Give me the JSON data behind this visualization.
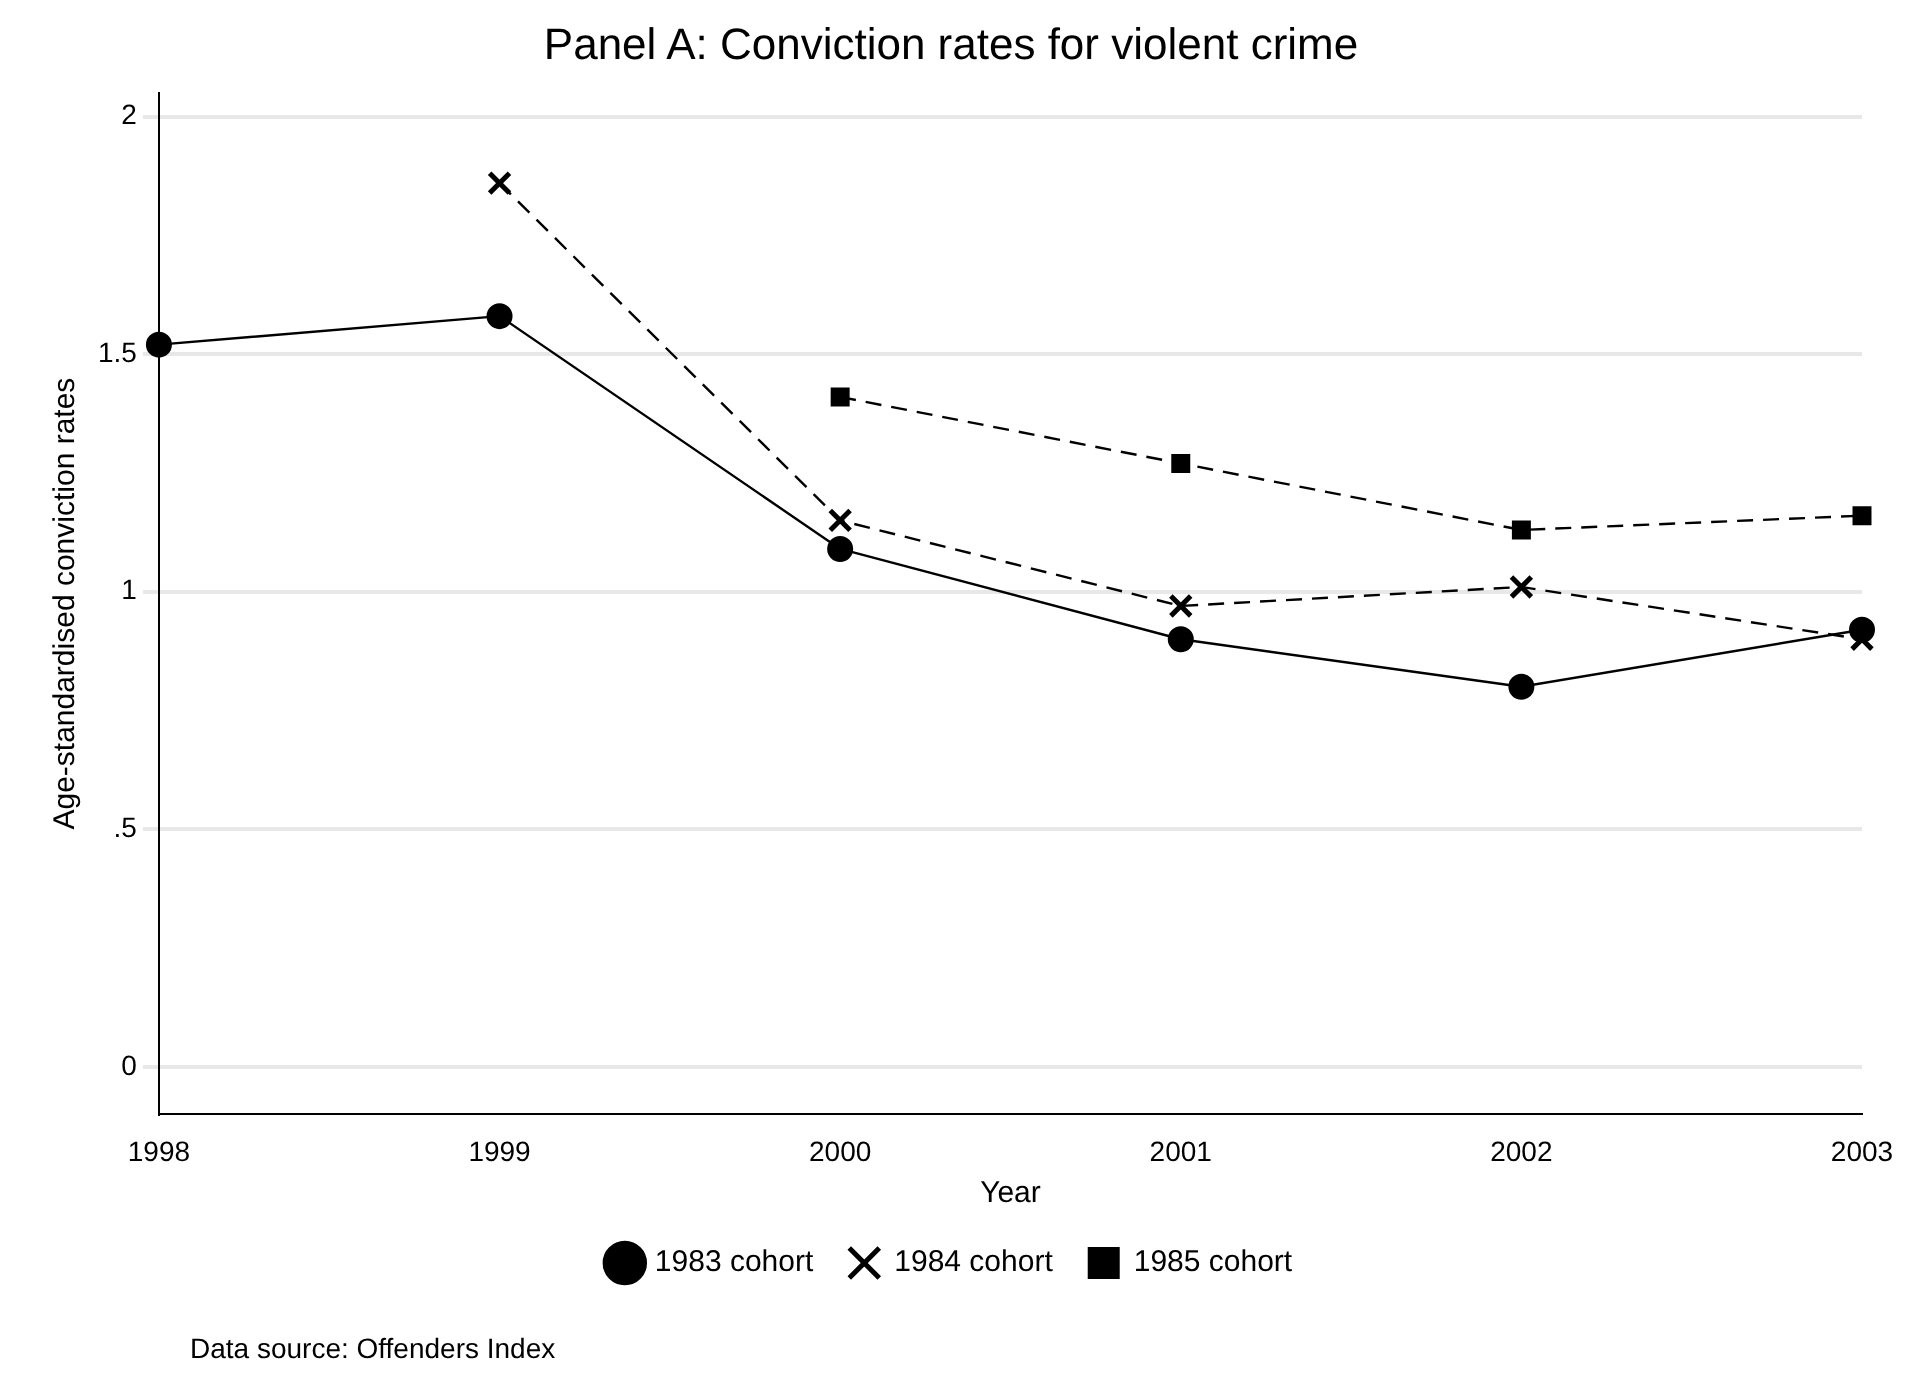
{
  "chart_data": {
    "type": "line",
    "title": "Panel A: Conviction rates for violent crime",
    "xlabel": "Year",
    "ylabel": "Age-standardised conviction rates",
    "x": [
      1998,
      1999,
      2000,
      2001,
      2002,
      2003
    ],
    "series": [
      {
        "name": "1983 cohort",
        "color": "#000000",
        "marker": "circle",
        "line_style": "solid",
        "values": [
          1.52,
          1.58,
          1.09,
          0.9,
          0.8,
          0.92
        ]
      },
      {
        "name": "1984 cohort",
        "color": "#000000",
        "marker": "cross",
        "line_style": "dashed",
        "values": [
          null,
          1.86,
          1.15,
          0.97,
          1.01,
          0.9
        ]
      },
      {
        "name": "1985 cohort",
        "color": "#000000",
        "marker": "square",
        "line_style": "dashed",
        "values": [
          null,
          null,
          1.41,
          1.27,
          1.13,
          1.16
        ]
      }
    ],
    "xlim": [
      1998,
      2003
    ],
    "xticks": [
      1998,
      1999,
      2000,
      2001,
      2002,
      2003
    ],
    "ylim": [
      -0.1,
      2.05
    ],
    "yticks": [
      0,
      {
        "value": 0.5,
        "label": ".5"
      },
      1,
      1.5,
      2
    ],
    "grid": "y",
    "legend": "bottom",
    "annotations": [
      "Data source: Offenders Index"
    ]
  }
}
